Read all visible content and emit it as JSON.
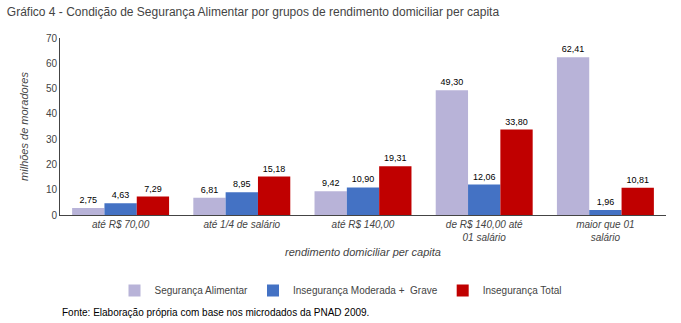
{
  "chart_data": {
    "type": "bar",
    "title": "Gráfico 4 - Condição de Segurança Alimentar por grupos de rendimento domiciliar per capita",
    "x_label": "rendimento domiciliar per capita",
    "y_label": "milhões de moradores",
    "annotations": [
      "Fonte: Elaboração própria com base nos microdados da PNAD 2009."
    ],
    "categories": [
      "até R$ 70,00",
      "até 1/4 de salário",
      "até R$ 140,00",
      "de R$ 140,00 até\n01 salário",
      "maior que 01\nsalário"
    ],
    "series": [
      {
        "name": "Segurança Alimentar",
        "color": "#b8b3d8",
        "values": [
          2.75,
          6.81,
          9.42,
          49.3,
          62.41
        ],
        "value_labels": [
          "2,75",
          "6,81",
          "9,42",
          "49,30",
          "62,41"
        ]
      },
      {
        "name": "Insegurança Moderada +  Grave",
        "color": "#4472c4",
        "values": [
          4.63,
          8.95,
          10.9,
          12.06,
          1.96
        ],
        "value_labels": [
          "4,63",
          "8,95",
          "10,90",
          "12,06",
          "1,96"
        ]
      },
      {
        "name": "Insegurança Total",
        "color": "#c00000",
        "values": [
          7.29,
          15.18,
          19.31,
          33.8,
          10.81
        ],
        "value_labels": [
          "7,29",
          "15,18",
          "19,31",
          "33,80",
          "10,81"
        ]
      }
    ],
    "ylim": [
      0,
      70
    ],
    "yticks": [
      0,
      10,
      20,
      30,
      40,
      50,
      60,
      70
    ],
    "grid": false,
    "legend": "bottom",
    "data_labels": true
  }
}
